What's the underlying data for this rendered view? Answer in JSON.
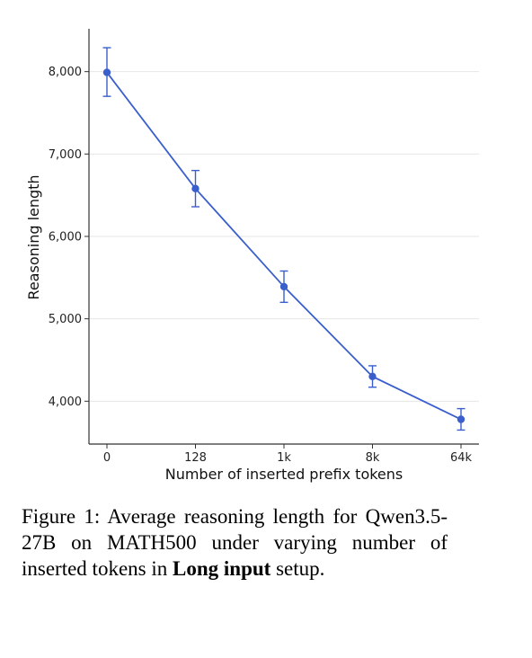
{
  "chart_data": {
    "type": "line",
    "categories": [
      "0",
      "128",
      "1k",
      "8k",
      "64k"
    ],
    "series": [
      {
        "values": [
          7990,
          6580,
          5390,
          4300,
          3780
        ],
        "error_low": [
          7700,
          6360,
          5200,
          4170,
          3650
        ],
        "error_high": [
          8290,
          6800,
          5580,
          4430,
          3910
        ]
      }
    ],
    "xlabel": "Number of inserted prefix tokens",
    "ylabel": "Reasoning length",
    "yticks": [
      4000,
      5000,
      6000,
      7000,
      8000
    ],
    "ytick_labels": [
      "4,000",
      "5,000",
      "6,000",
      "7,000",
      "8,000"
    ],
    "ylim": [
      3480,
      8520
    ],
    "grid": "horizontal",
    "legend": "none",
    "color": "#3a5fcd"
  },
  "caption": {
    "prefix": "Figure 1:  Average reasoning length for Qwen3.5-27B on MATH500 under varying number of inserted tokens in ",
    "bold": "Long input",
    "suffix": " setup."
  }
}
